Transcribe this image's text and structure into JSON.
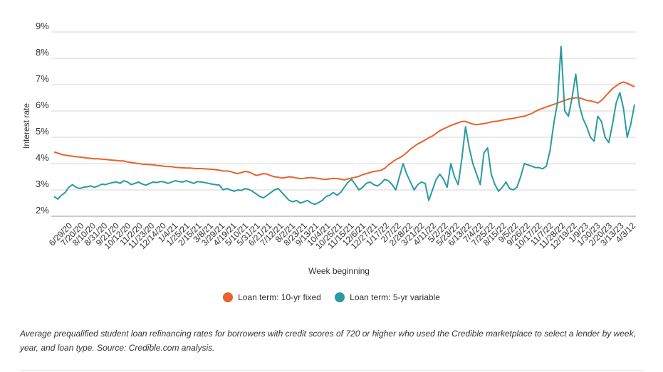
{
  "chart_data": {
    "type": "line",
    "ylabel": "Interest rate",
    "xlabel": "Week beginning",
    "y_ticks": [
      "9%",
      "8%",
      "7%",
      "6%",
      "5%",
      "4%",
      "3%",
      "2%"
    ],
    "ylim": [
      2,
      9
    ],
    "x_tick_labels": [
      "6/29/20",
      "7/20/20",
      "8/10/20",
      "8/31/20",
      "9/21/20",
      "10/12/20",
      "11/2/20",
      "11/23/20",
      "12/14/20",
      "1/4/21",
      "1/25/21",
      "2/15/21",
      "3/8/21",
      "3/29/21",
      "4/19/21",
      "5/10/21",
      "5/31/21",
      "6/21/21",
      "7/12/21",
      "8/2/21",
      "8/23/21",
      "9/13/21",
      "10/4/21",
      "10/25/21",
      "11/15/21",
      "12/6/21",
      "12/27/21",
      "1/17/22",
      "2/7/22",
      "2/28/22",
      "3/21/22",
      "4/11/22",
      "5/2/22",
      "5/23/22",
      "6/13/22",
      "7/4/22",
      "7/25/22",
      "8/15/22",
      "9/5/22",
      "9/26/22",
      "10/17/22",
      "11/7/22",
      "11/28/22",
      "12/19/22",
      "1/9/23",
      "1/30/23",
      "2/20/23",
      "3/13/23",
      "4/3/12"
    ],
    "grid": true,
    "legend_position": "bottom-center",
    "series": [
      {
        "name": "Loan term: 10-yr fixed",
        "color": "#e8622c",
        "values": [
          4.44,
          4.4,
          4.35,
          4.32,
          4.3,
          4.28,
          4.26,
          4.25,
          4.23,
          4.21,
          4.2,
          4.18,
          4.18,
          4.17,
          4.16,
          4.14,
          4.13,
          4.12,
          4.1,
          4.1,
          4.06,
          4.04,
          4.02,
          4.0,
          3.98,
          3.97,
          3.96,
          3.95,
          3.93,
          3.92,
          3.9,
          3.89,
          3.88,
          3.86,
          3.85,
          3.84,
          3.83,
          3.83,
          3.82,
          3.81,
          3.81,
          3.8,
          3.79,
          3.78,
          3.77,
          3.75,
          3.72,
          3.72,
          3.7,
          3.65,
          3.62,
          3.66,
          3.7,
          3.68,
          3.62,
          3.55,
          3.58,
          3.62,
          3.6,
          3.54,
          3.5,
          3.48,
          3.45,
          3.47,
          3.5,
          3.48,
          3.45,
          3.43,
          3.44,
          3.46,
          3.47,
          3.45,
          3.43,
          3.41,
          3.4,
          3.42,
          3.44,
          3.43,
          3.41,
          3.38,
          3.42,
          3.45,
          3.48,
          3.52,
          3.58,
          3.62,
          3.66,
          3.7,
          3.72,
          3.75,
          3.82,
          3.95,
          4.05,
          4.15,
          4.22,
          4.3,
          4.42,
          4.55,
          4.65,
          4.75,
          4.82,
          4.9,
          4.98,
          5.05,
          5.15,
          5.25,
          5.32,
          5.38,
          5.45,
          5.5,
          5.55,
          5.6,
          5.6,
          5.55,
          5.5,
          5.48,
          5.5,
          5.52,
          5.55,
          5.58,
          5.6,
          5.62,
          5.65,
          5.68,
          5.7,
          5.72,
          5.75,
          5.78,
          5.8,
          5.85,
          5.9,
          5.98,
          6.05,
          6.1,
          6.15,
          6.2,
          6.25,
          6.3,
          6.35,
          6.4,
          6.45,
          6.48,
          6.5,
          6.5,
          6.45,
          6.4,
          6.38,
          6.35,
          6.3,
          6.4,
          6.55,
          6.7,
          6.85,
          6.95,
          7.05,
          7.1,
          7.05,
          6.98,
          6.92
        ]
      },
      {
        "name": "Loan term: 5-yr variable",
        "color": "#2a9aa1",
        "values": [
          2.75,
          2.65,
          2.8,
          2.9,
          3.1,
          3.2,
          3.1,
          3.05,
          3.1,
          3.12,
          3.15,
          3.1,
          3.15,
          3.22,
          3.2,
          3.25,
          3.28,
          3.3,
          3.25,
          3.35,
          3.3,
          3.2,
          3.25,
          3.3,
          3.22,
          3.18,
          3.25,
          3.3,
          3.28,
          3.32,
          3.3,
          3.25,
          3.3,
          3.35,
          3.32,
          3.3,
          3.35,
          3.3,
          3.25,
          3.32,
          3.3,
          3.28,
          3.25,
          3.22,
          3.2,
          3.18,
          3.0,
          3.05,
          3.0,
          2.95,
          3.0,
          2.98,
          3.05,
          3.02,
          2.95,
          2.85,
          2.75,
          2.7,
          2.8,
          2.9,
          3.0,
          3.05,
          2.9,
          2.75,
          2.6,
          2.55,
          2.6,
          2.5,
          2.55,
          2.6,
          2.5,
          2.45,
          2.52,
          2.6,
          2.75,
          2.8,
          2.9,
          2.8,
          2.9,
          3.1,
          3.3,
          3.4,
          3.2,
          3.0,
          3.1,
          3.25,
          3.3,
          3.2,
          3.15,
          3.25,
          3.4,
          3.35,
          3.2,
          3.0,
          3.5,
          4.0,
          3.6,
          3.3,
          3.0,
          3.2,
          3.3,
          3.25,
          2.6,
          3.0,
          3.4,
          3.6,
          3.4,
          3.1,
          4.0,
          3.5,
          3.2,
          4.2,
          5.4,
          4.6,
          4.0,
          3.6,
          3.2,
          4.4,
          4.6,
          3.6,
          3.2,
          2.95,
          3.1,
          3.3,
          3.05,
          3.0,
          3.1,
          3.5,
          4.0,
          3.95,
          3.9,
          3.85,
          3.85,
          3.8,
          3.9,
          4.5,
          5.5,
          6.3,
          8.45,
          6.0,
          5.8,
          6.5,
          7.4,
          6.2,
          5.7,
          5.4,
          5.0,
          4.85,
          5.8,
          5.6,
          5.0,
          4.8,
          5.5,
          6.3,
          6.7,
          6.1,
          5.0,
          5.5,
          6.25
        ]
      }
    ]
  },
  "legend": {
    "items": [
      {
        "label": "Loan term: 10-yr fixed",
        "color": "#e8622c"
      },
      {
        "label": "Loan term: 5-yr variable",
        "color": "#2a9aa1"
      }
    ]
  },
  "caption": "Average prequalified student loan refinancing rates for borrowers with credit scores of 720 or higher who used the Credible marketplace to select a lender by week, year, and loan type. Source: Credible.com analysis."
}
